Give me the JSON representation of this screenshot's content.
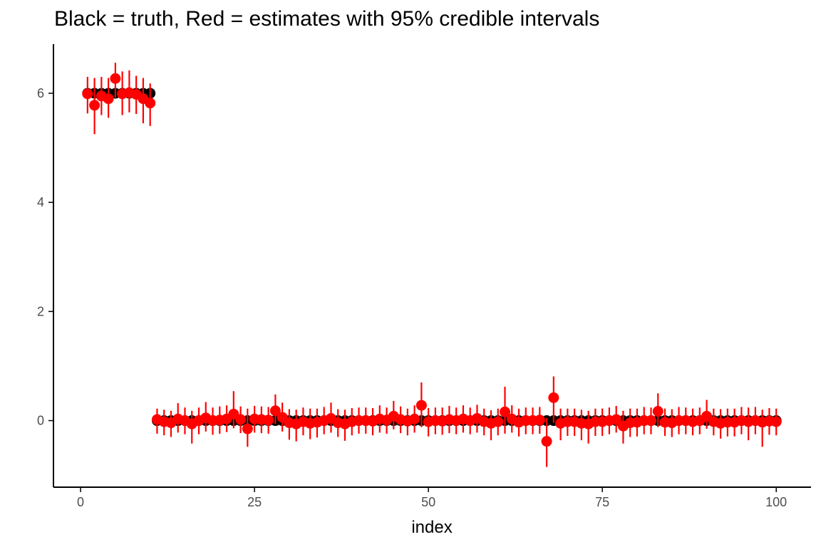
{
  "chart_data": {
    "type": "scatter",
    "title": "Black = truth, Red = estimates with 95% credible intervals",
    "xlabel": "index",
    "ylabel": "",
    "xlim": [
      -3.9,
      105
    ],
    "ylim": [
      -1.22,
      6.9
    ],
    "x_ticks": [
      0,
      25,
      50,
      75,
      100
    ],
    "x_tick_labels": [
      "0",
      "25",
      "50",
      "75",
      "100"
    ],
    "y_ticks": [
      0,
      2,
      4,
      6
    ],
    "y_tick_labels": [
      "0",
      "2",
      "4",
      "6"
    ],
    "grid": false,
    "colors": {
      "truth": "#000000",
      "estimate": "#ff0000",
      "axis": "#000000",
      "tick_label": "#4d4d4d"
    },
    "series": [
      {
        "role": "truth",
        "x": [
          1,
          2,
          3,
          4,
          5,
          6,
          7,
          8,
          9,
          10,
          11,
          12,
          13,
          14,
          15,
          16,
          17,
          18,
          19,
          20,
          21,
          22,
          23,
          24,
          25,
          26,
          27,
          28,
          29,
          30,
          31,
          32,
          33,
          34,
          35,
          36,
          37,
          38,
          39,
          40,
          41,
          42,
          43,
          44,
          45,
          46,
          47,
          48,
          49,
          50,
          51,
          52,
          53,
          54,
          55,
          56,
          57,
          58,
          59,
          60,
          61,
          62,
          63,
          64,
          65,
          66,
          67,
          68,
          69,
          70,
          71,
          72,
          73,
          74,
          75,
          76,
          77,
          78,
          79,
          80,
          81,
          82,
          83,
          84,
          85,
          86,
          87,
          88,
          89,
          90,
          91,
          92,
          93,
          94,
          95,
          96,
          97,
          98,
          99,
          100
        ],
        "values": [
          6,
          6,
          6,
          6,
          6,
          6,
          6,
          6,
          6,
          6,
          0,
          0,
          0,
          0,
          0,
          0,
          0,
          0,
          0,
          0,
          0,
          0,
          0,
          0,
          0,
          0,
          0,
          0,
          0,
          0,
          0,
          0,
          0,
          0,
          0,
          0,
          0,
          0,
          0,
          0,
          0,
          0,
          0,
          0,
          0,
          0,
          0,
          0,
          0,
          0,
          0,
          0,
          0,
          0,
          0,
          0,
          0,
          0,
          0,
          0,
          0,
          0,
          0,
          0,
          0,
          0,
          0,
          0,
          0,
          0,
          0,
          0,
          0,
          0,
          0,
          0,
          0,
          0,
          0,
          0,
          0,
          0,
          0,
          0,
          0,
          0,
          0,
          0,
          0,
          0,
          0,
          0,
          0,
          0,
          0,
          0,
          0,
          0,
          0,
          0
        ]
      },
      {
        "role": "estimate",
        "x": [
          1,
          2,
          3,
          4,
          5,
          6,
          7,
          8,
          9,
          10,
          11,
          12,
          13,
          14,
          15,
          16,
          17,
          18,
          19,
          20,
          21,
          22,
          23,
          24,
          25,
          26,
          27,
          28,
          29,
          30,
          31,
          32,
          33,
          34,
          35,
          36,
          37,
          38,
          39,
          40,
          41,
          42,
          43,
          44,
          45,
          46,
          47,
          48,
          49,
          50,
          51,
          52,
          53,
          54,
          55,
          56,
          57,
          58,
          59,
          60,
          61,
          62,
          63,
          64,
          65,
          66,
          67,
          68,
          69,
          70,
          71,
          72,
          73,
          74,
          75,
          76,
          77,
          78,
          79,
          80,
          81,
          82,
          83,
          84,
          85,
          86,
          87,
          88,
          89,
          90,
          91,
          92,
          93,
          94,
          95,
          96,
          97,
          98,
          99,
          100
        ],
        "values": [
          5.99,
          5.78,
          5.95,
          5.9,
          6.27,
          5.99,
          6.01,
          5.98,
          5.9,
          5.82,
          0.02,
          -0.02,
          -0.04,
          0.03,
          0.0,
          -0.06,
          0.0,
          0.05,
          0.0,
          0.01,
          0.03,
          0.12,
          0.02,
          -0.15,
          0.03,
          0.02,
          0.01,
          0.18,
          0.06,
          -0.04,
          -0.06,
          -0.02,
          -0.05,
          -0.03,
          0.0,
          0.04,
          -0.04,
          -0.06,
          -0.02,
          0.0,
          0.0,
          -0.01,
          0.03,
          0.01,
          0.08,
          0.02,
          -0.01,
          0.03,
          0.28,
          -0.02,
          0.0,
          -0.01,
          0.02,
          0.0,
          0.03,
          0.0,
          0.04,
          -0.02,
          -0.05,
          -0.02,
          0.16,
          0.03,
          -0.03,
          0.0,
          0.0,
          0.01,
          -0.38,
          0.42,
          -0.05,
          -0.02,
          -0.02,
          -0.05,
          -0.06,
          -0.02,
          -0.02,
          0.0,
          0.02,
          -0.1,
          -0.04,
          -0.03,
          0.0,
          0.0,
          0.17,
          -0.03,
          -0.04,
          0.0,
          0.0,
          -0.02,
          0.0,
          0.08,
          -0.02,
          -0.05,
          -0.03,
          -0.03,
          0.0,
          -0.02,
          0.0,
          -0.03,
          -0.01,
          -0.02
        ],
        "lower": [
          5.63,
          5.25,
          5.6,
          5.55,
          5.92,
          5.6,
          5.65,
          5.62,
          5.45,
          5.4,
          -0.24,
          -0.27,
          -0.3,
          -0.22,
          -0.25,
          -0.42,
          -0.25,
          -0.2,
          -0.26,
          -0.24,
          -0.21,
          -0.14,
          -0.23,
          -0.48,
          -0.22,
          -0.23,
          -0.24,
          -0.06,
          -0.2,
          -0.35,
          -0.38,
          -0.27,
          -0.34,
          -0.31,
          -0.25,
          -0.22,
          -0.3,
          -0.37,
          -0.27,
          -0.24,
          -0.24,
          -0.27,
          -0.22,
          -0.24,
          -0.16,
          -0.23,
          -0.27,
          -0.22,
          -0.12,
          -0.29,
          -0.25,
          -0.26,
          -0.23,
          -0.25,
          -0.22,
          -0.25,
          -0.22,
          -0.27,
          -0.36,
          -0.27,
          -0.24,
          -0.22,
          -0.29,
          -0.25,
          -0.25,
          -0.24,
          -0.85,
          -0.04,
          -0.36,
          -0.28,
          -0.28,
          -0.36,
          -0.42,
          -0.28,
          -0.28,
          -0.25,
          -0.22,
          -0.42,
          -0.3,
          -0.29,
          -0.25,
          -0.25,
          -0.12,
          -0.28,
          -0.3,
          -0.25,
          -0.25,
          -0.27,
          -0.25,
          -0.15,
          -0.27,
          -0.33,
          -0.29,
          -0.29,
          -0.25,
          -0.36,
          -0.25,
          -0.48,
          -0.26,
          -0.27
        ],
        "upper": [
          6.3,
          6.28,
          6.3,
          6.28,
          6.56,
          6.4,
          6.42,
          6.32,
          6.28,
          6.18,
          0.22,
          0.2,
          0.18,
          0.32,
          0.24,
          0.18,
          0.24,
          0.34,
          0.24,
          0.26,
          0.28,
          0.54,
          0.26,
          0.22,
          0.27,
          0.26,
          0.25,
          0.48,
          0.33,
          0.21,
          0.2,
          0.24,
          0.22,
          0.22,
          0.25,
          0.33,
          0.21,
          0.2,
          0.23,
          0.24,
          0.24,
          0.23,
          0.28,
          0.24,
          0.36,
          0.26,
          0.22,
          0.28,
          0.7,
          0.23,
          0.24,
          0.24,
          0.27,
          0.24,
          0.28,
          0.24,
          0.29,
          0.22,
          0.19,
          0.22,
          0.62,
          0.28,
          0.22,
          0.24,
          0.24,
          0.25,
          0.05,
          0.81,
          0.22,
          0.22,
          0.22,
          0.2,
          0.18,
          0.22,
          0.22,
          0.24,
          0.27,
          0.18,
          0.22,
          0.22,
          0.25,
          0.24,
          0.5,
          0.22,
          0.21,
          0.25,
          0.24,
          0.22,
          0.24,
          0.38,
          0.22,
          0.21,
          0.22,
          0.22,
          0.25,
          0.24,
          0.25,
          0.2,
          0.23,
          0.22
        ]
      }
    ]
  }
}
